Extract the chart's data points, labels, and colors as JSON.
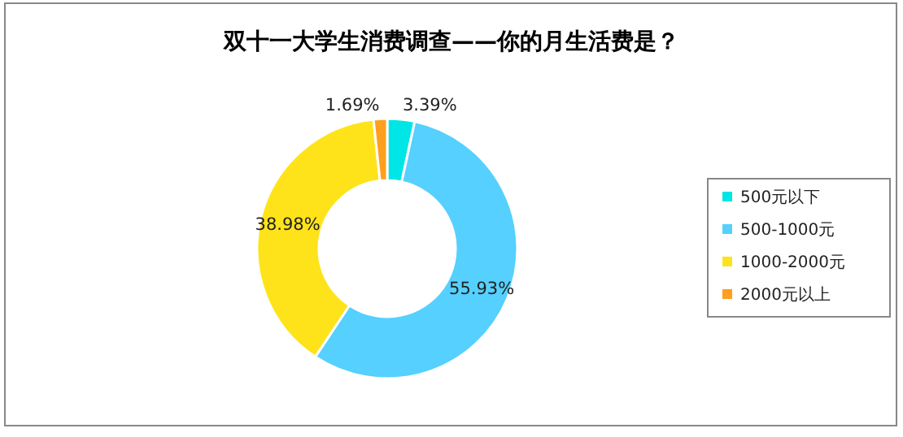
{
  "chart_data": {
    "type": "donut",
    "title": "双十一大学生消费调查——你的月生活费是？",
    "categories": [
      "500元以下",
      "500-1000元",
      "1000-2000元",
      "2000元以上"
    ],
    "values": [
      3.39,
      55.93,
      38.98,
      1.69
    ],
    "value_labels": [
      "3.39%",
      "55.93%",
      "38.98%",
      "1.69%"
    ],
    "colors": [
      "#00e5e5",
      "#55d0ff",
      "#ffe31a",
      "#ff9f1f"
    ],
    "legend": "right"
  }
}
